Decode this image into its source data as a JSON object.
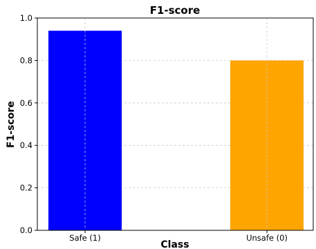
{
  "chart_data": {
    "type": "bar",
    "title": "F1-score",
    "xlabel": "Class",
    "ylabel": "F1-score",
    "categories": [
      "Safe (1)",
      "Unsafe (0)"
    ],
    "values": [
      0.94,
      0.8
    ],
    "colors": [
      "#0000ff",
      "#ffa500"
    ],
    "ylim": [
      0,
      1.0
    ],
    "yticks": [
      "0.0",
      "0.2",
      "0.4",
      "0.6",
      "0.8",
      "1.0"
    ],
    "grid": true
  }
}
